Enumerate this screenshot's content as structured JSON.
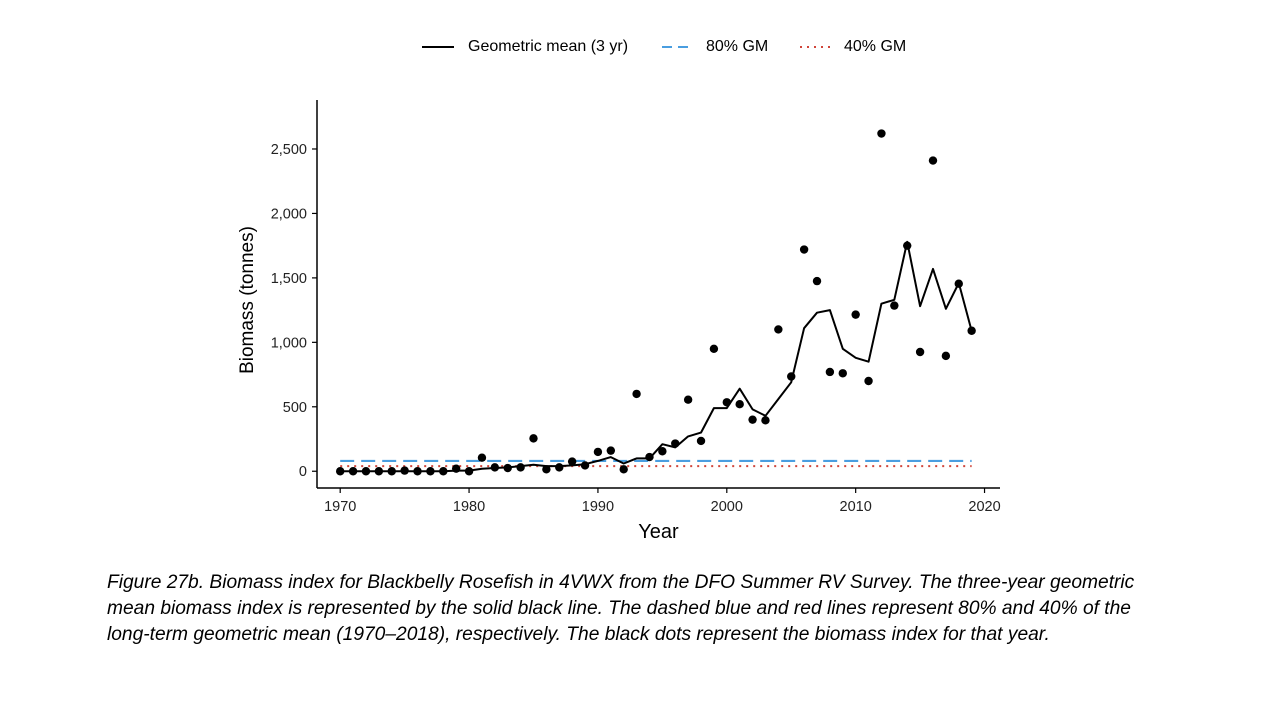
{
  "legend": {
    "geo_mean": "Geometric mean (3 yr)",
    "gm80": "80% GM",
    "gm40": "40% GM"
  },
  "caption": "Figure 27b. Biomass index for Blackbelly Rosefish in 4VWX from the DFO Summer RV Survey. The three-year geometric mean biomass index is represented by the solid black line. The dashed blue and red lines represent 80% and 40% of the long-term geometric mean (1970–2018), respectively. The black dots represent the biomass index for that year.",
  "colors": {
    "gm80": "#4a9ee0",
    "gm40": "#d0453a",
    "series": "#000000"
  },
  "chart_data": {
    "type": "line",
    "title": "",
    "xlabel": "Year",
    "ylabel": "Biomass (tonnes)",
    "xlim": [
      1968.2,
      2021.2
    ],
    "ylim": [
      -130,
      2880
    ],
    "xticks": [
      1970,
      1980,
      1990,
      2000,
      2010,
      2020
    ],
    "yticks": [
      0,
      500,
      1000,
      1500,
      2000,
      2500
    ],
    "ytick_labels": [
      "0",
      "500",
      "1,000",
      "1,500",
      "2,000",
      "2,500"
    ],
    "reference_lines": [
      {
        "name": "80% GM",
        "y": 80,
        "x_range": [
          1970,
          2019
        ],
        "style": "dashed"
      },
      {
        "name": "40% GM",
        "y": 40,
        "x_range": [
          1970,
          2019
        ],
        "style": "dotted"
      }
    ],
    "annual_index": {
      "x": [
        1970,
        1971,
        1972,
        1973,
        1974,
        1975,
        1976,
        1977,
        1978,
        1979,
        1980,
        1981,
        1982,
        1983,
        1984,
        1985,
        1986,
        1987,
        1988,
        1989,
        1990,
        1991,
        1992,
        1993,
        1994,
        1995,
        1996,
        1997,
        1998,
        1999,
        2000,
        2001,
        2002,
        2003,
        2004,
        2005,
        2006,
        2007,
        2008,
        2009,
        2010,
        2011,
        2012,
        2013,
        2014,
        2015,
        2016,
        2017,
        2018,
        2019
      ],
      "y": [
        0,
        0,
        0,
        0,
        0,
        5,
        0,
        0,
        0,
        20,
        0,
        105,
        30,
        25,
        30,
        255,
        15,
        30,
        75,
        45,
        150,
        160,
        15,
        600,
        110,
        155,
        215,
        555,
        235,
        950,
        535,
        520,
        400,
        395,
        1100,
        735,
        1720,
        1475,
        770,
        760,
        1215,
        700,
        2620,
        1285,
        1750,
        925,
        2410,
        895,
        1455,
        1090
      ]
    },
    "series": [
      {
        "name": "Geometric mean (3 yr)",
        "x": [
          1970,
          1971,
          1972,
          1973,
          1974,
          1975,
          1976,
          1977,
          1978,
          1979,
          1980,
          1981,
          1982,
          1983,
          1984,
          1985,
          1986,
          1987,
          1988,
          1989,
          1990,
          1991,
          1992,
          1993,
          1994,
          1995,
          1996,
          1997,
          1998,
          1999,
          2000,
          2001,
          2002,
          2003,
          2004,
          2005,
          2006,
          2007,
          2008,
          2009,
          2010,
          2011,
          2012,
          2013,
          2014,
          2015,
          2016,
          2017,
          2018,
          2019
        ],
        "y": [
          0,
          0,
          0,
          0,
          0,
          0,
          0,
          0,
          0,
          5,
          5,
          20,
          25,
          30,
          40,
          50,
          40,
          40,
          45,
          55,
          80,
          110,
          60,
          100,
          100,
          210,
          185,
          270,
          300,
          490,
          490,
          640,
          480,
          430,
          560,
          690,
          1110,
          1230,
          1250,
          950,
          880,
          850,
          1300,
          1330,
          1780,
          1280,
          1570,
          1260,
          1460,
          1090
        ]
      }
    ]
  }
}
